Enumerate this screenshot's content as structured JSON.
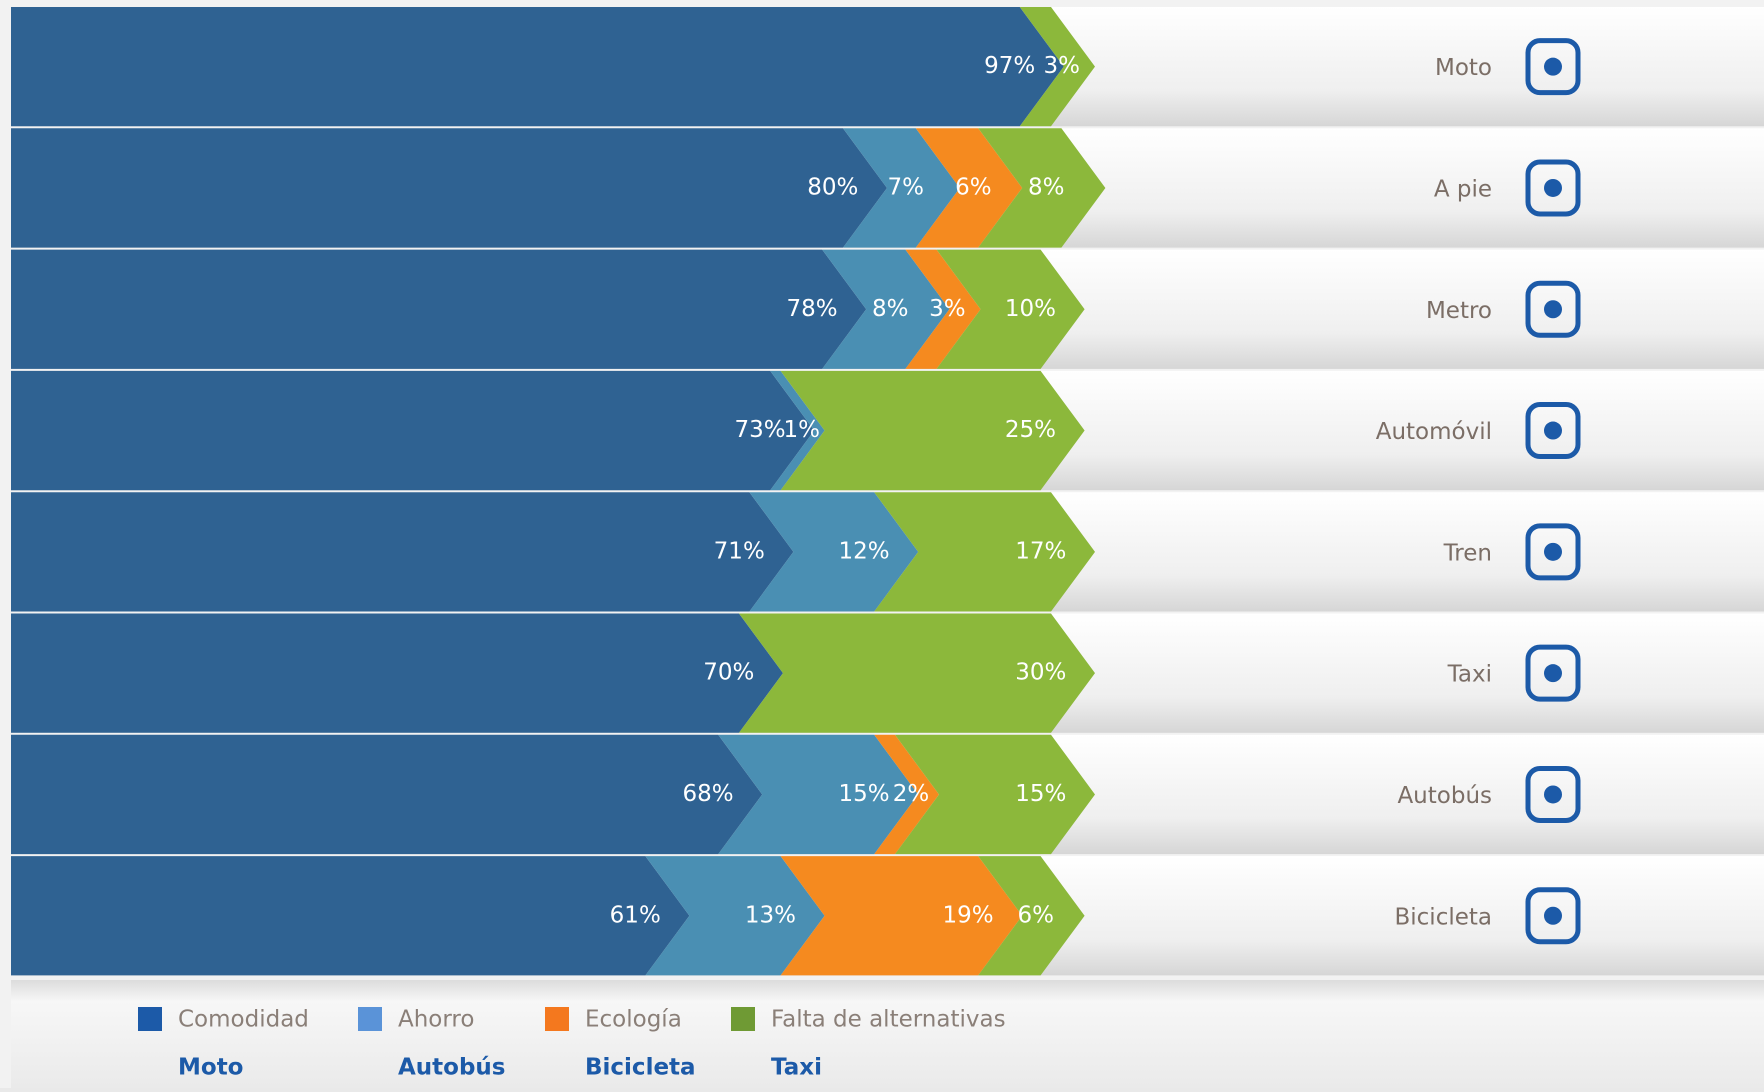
{
  "chart_data": {
    "type": "stacked-chevron-bar",
    "categories": [
      "Moto",
      "A pie",
      "Metro",
      "Automóvil",
      "Tren",
      "Taxi",
      "Autobús",
      "Bicicleta"
    ],
    "series": [
      {
        "name": "Comodidad",
        "color": "#2f6292",
        "legend_color": "#1c5aa8",
        "values": [
          97,
          80,
          78,
          73,
          71,
          70,
          68,
          61
        ],
        "value_labels": [
          "97%",
          "80%",
          "78%",
          "73%",
          "71%",
          "70%",
          "68%",
          "61%"
        ]
      },
      {
        "name": "Ahorro",
        "color": "#4a8fb3",
        "legend_color": "#5a93d8",
        "values": [
          null,
          7,
          8,
          1,
          12,
          null,
          15,
          13
        ],
        "value_labels": [
          null,
          "7%",
          "8%",
          "1%",
          "12%",
          null,
          "15%",
          "13%"
        ]
      },
      {
        "name": "Ecología",
        "color": "#f58a1f",
        "legend_color": "#f4781e",
        "values": [
          null,
          6,
          3,
          null,
          null,
          null,
          2,
          19
        ],
        "value_labels": [
          null,
          "6%",
          "3%",
          null,
          null,
          null,
          "2%",
          "19%"
        ]
      },
      {
        "name": "Falta de alternativas",
        "color": "#8cb83b",
        "legend_color": "#6f9a34",
        "values": [
          3,
          8,
          10,
          25,
          17,
          30,
          15,
          6
        ],
        "value_labels": [
          "3%",
          "8%",
          "10%",
          "25%",
          "17%",
          "30%",
          "15%",
          "6%"
        ]
      }
    ],
    "legend_highlights": [
      "Moto",
      "Autobús",
      "Bicicleta",
      "Taxi"
    ]
  }
}
